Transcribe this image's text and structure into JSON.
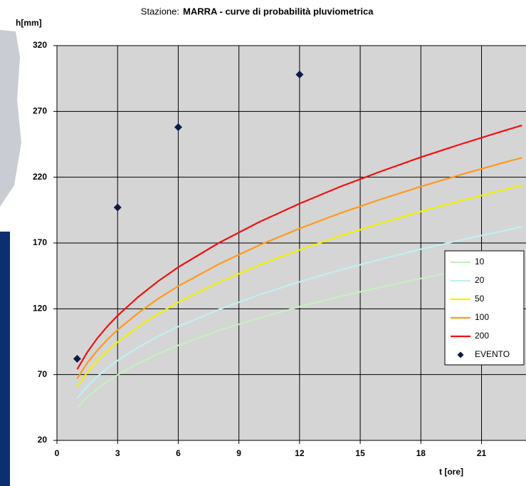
{
  "chart_data": {
    "type": "line",
    "title_label": "Stazione:",
    "title": "MARRA - curve di probabilità pluviometrica",
    "y_label": "h[mm]",
    "x_label": "t [ore]",
    "xlim": [
      0,
      23.2
    ],
    "xticks": [
      0,
      3,
      6,
      9,
      12,
      15,
      18,
      21
    ],
    "ylim": [
      20,
      320
    ],
    "yticks": [
      20,
      70,
      120,
      170,
      220,
      270,
      320
    ],
    "grid": true,
    "legend": "right",
    "series": [
      {
        "name": "10",
        "color": "#c6f0bf",
        "x": [
          1,
          1.5,
          2,
          2.5,
          3,
          4,
          5,
          6,
          8,
          10,
          12,
          14,
          16,
          18,
          20,
          22,
          23
        ],
        "values": [
          45,
          52.9,
          59.4,
          64.9,
          69.8,
          78.3,
          85.7,
          92.2,
          103.4,
          113.0,
          121.6,
          129.3,
          136.4,
          143.0,
          149.1,
          154.9,
          157.7
        ]
      },
      {
        "name": "20",
        "color": "#bff0f0",
        "x": [
          1,
          1.5,
          2,
          2.5,
          3,
          4,
          5,
          6,
          8,
          10,
          12,
          14,
          16,
          18,
          20,
          22,
          23
        ],
        "values": [
          52,
          61.2,
          68.6,
          75.0,
          80.7,
          90.5,
          99.0,
          106.5,
          119.4,
          130.6,
          140.5,
          149.4,
          157.6,
          165.3,
          172.3,
          179.0,
          182.3
        ]
      },
      {
        "name": "50",
        "color": "#f2f200",
        "x": [
          1,
          1.5,
          2,
          2.5,
          3,
          4,
          5,
          6,
          8,
          10,
          12,
          14,
          16,
          18,
          20,
          22,
          23
        ],
        "values": [
          61,
          71.7,
          80.5,
          88.0,
          94.7,
          106.2,
          116.1,
          124.9,
          140.1,
          153.2,
          164.8,
          175.3,
          184.9,
          193.9,
          202.2,
          210.0,
          213.8
        ]
      },
      {
        "name": "100",
        "color": "#ff9a1a",
        "x": [
          1,
          1.5,
          2,
          2.5,
          3,
          4,
          5,
          6,
          8,
          10,
          12,
          14,
          16,
          18,
          20,
          22,
          23
        ],
        "values": [
          67,
          78.8,
          88.4,
          96.7,
          104.0,
          116.6,
          127.6,
          137.2,
          153.9,
          168.3,
          181.0,
          192.6,
          203.1,
          212.9,
          222.0,
          230.7,
          234.8
        ]
      },
      {
        "name": "200",
        "color": "#ee1111",
        "x": [
          1,
          1.5,
          2,
          2.5,
          3,
          4,
          5,
          6,
          8,
          10,
          12,
          14,
          16,
          18,
          20,
          22,
          23
        ],
        "values": [
          74,
          87.0,
          97.7,
          106.8,
          114.8,
          128.8,
          140.9,
          151.6,
          170.0,
          185.9,
          199.9,
          212.7,
          224.3,
          235.2,
          245.2,
          254.8,
          259.4
        ]
      },
      {
        "name": "EVENTO",
        "type": "scatter",
        "color": "#0b1b48",
        "x": [
          1,
          3,
          6,
          12
        ],
        "values": [
          82,
          197,
          258,
          298
        ]
      }
    ]
  }
}
